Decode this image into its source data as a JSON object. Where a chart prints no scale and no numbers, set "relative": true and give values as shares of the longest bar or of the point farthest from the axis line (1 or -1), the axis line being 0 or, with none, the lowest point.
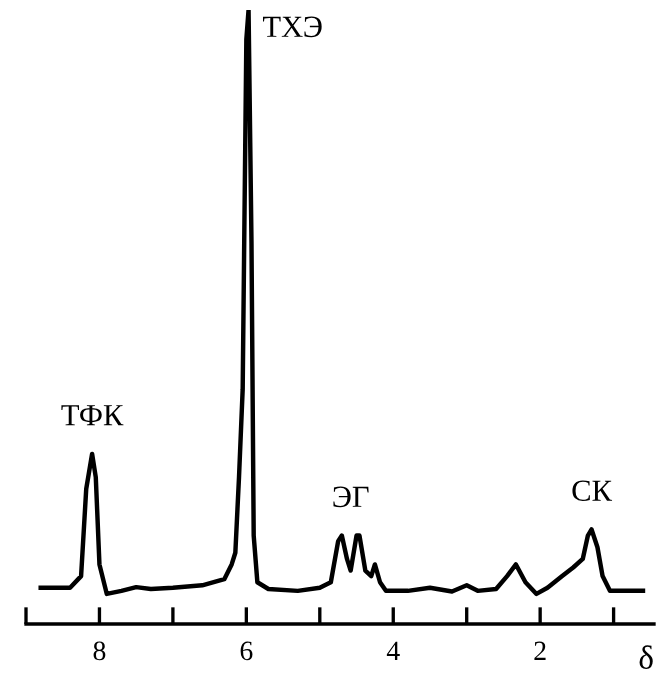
{
  "chart_data": {
    "type": "line",
    "relative": true,
    "xlabel": "δ",
    "color": "#000000",
    "xlim": [
      9,
      0.45
    ],
    "xticks": [
      {
        "value": 9,
        "label": null
      },
      8,
      {
        "value": 7,
        "label": null
      },
      6,
      {
        "value": 5,
        "label": null
      },
      4,
      {
        "value": 3,
        "label": null
      },
      2,
      {
        "value": 1,
        "label": null
      }
    ],
    "x": [
      8.8,
      8.4,
      8.25,
      8.18,
      8.1,
      8.05,
      8.0,
      7.9,
      7.7,
      7.5,
      7.3,
      7.0,
      6.6,
      6.3,
      6.2,
      6.15,
      6.1,
      6.05,
      6.0,
      5.97,
      5.93,
      5.9,
      5.85,
      5.7,
      5.3,
      5.0,
      4.85,
      4.75,
      4.7,
      4.63,
      4.58,
      4.5,
      4.46,
      4.38,
      4.3,
      4.25,
      4.18,
      4.1,
      3.8,
      3.5,
      3.2,
      3.0,
      2.85,
      2.6,
      2.45,
      2.33,
      2.2,
      2.05,
      1.9,
      1.7,
      1.55,
      1.42,
      1.35,
      1.3,
      1.22,
      1.15,
      1.05,
      0.6
    ],
    "values": [
      0.059,
      0.059,
      0.078,
      0.22,
      0.277,
      0.239,
      0.097,
      0.049,
      0.054,
      0.06,
      0.057,
      0.059,
      0.063,
      0.073,
      0.097,
      0.116,
      0.239,
      0.382,
      0.952,
      1.0,
      0.62,
      0.144,
      0.068,
      0.057,
      0.054,
      0.059,
      0.068,
      0.135,
      0.144,
      0.106,
      0.087,
      0.144,
      0.144,
      0.087,
      0.078,
      0.097,
      0.068,
      0.054,
      0.054,
      0.059,
      0.053,
      0.063,
      0.054,
      0.057,
      0.078,
      0.097,
      0.068,
      0.049,
      0.059,
      0.078,
      0.092,
      0.106,
      0.144,
      0.154,
      0.125,
      0.078,
      0.054,
      0.054
    ],
    "annotations": [
      {
        "text": "ТФК",
        "x": 8.1,
        "y": 0.277
      },
      {
        "text": "ТХЭ",
        "x": 5.97,
        "y": 1.0
      },
      {
        "text": "ЭГ",
        "x": 4.58,
        "y": 0.144
      },
      {
        "text": "СК",
        "x": 1.3,
        "y": 0.154
      }
    ],
    "grid": false,
    "marker": "none",
    "line_style": "solid"
  }
}
